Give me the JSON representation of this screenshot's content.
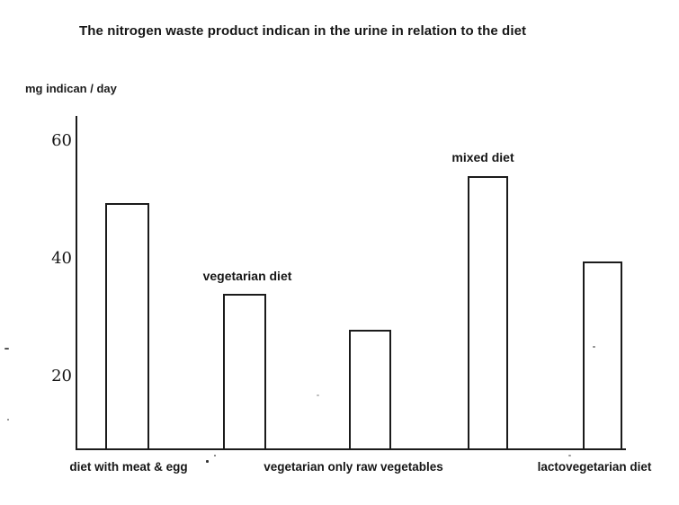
{
  "chart_data": {
    "type": "bar",
    "title": "The nitrogen waste product indican in the urine in relation to the diet",
    "ylabel": "mg indican / day",
    "xlabel": "",
    "yticks": [
      20,
      40,
      60
    ],
    "ylim": [
      7.5,
      64
    ],
    "grid": false,
    "legend": "none",
    "bar_fill": "#ffffff",
    "bar_border": "#1b1b1b",
    "axis_note": "y-axis truncated; baseline sits at about 7.5 mg, not zero",
    "bars": [
      {
        "label": "diet with meat & egg",
        "value": 49.5,
        "label_position": "below"
      },
      {
        "label": "vegetarian diet",
        "value": 34,
        "label_position": "above"
      },
      {
        "label": "vegetarian only raw vegetables",
        "value": 28,
        "label_position": "below"
      },
      {
        "label": "mixed diet",
        "value": 54,
        "label_position": "above"
      },
      {
        "label": "lactovegetarian diet",
        "value": 39.5,
        "label_position": "below"
      }
    ]
  }
}
